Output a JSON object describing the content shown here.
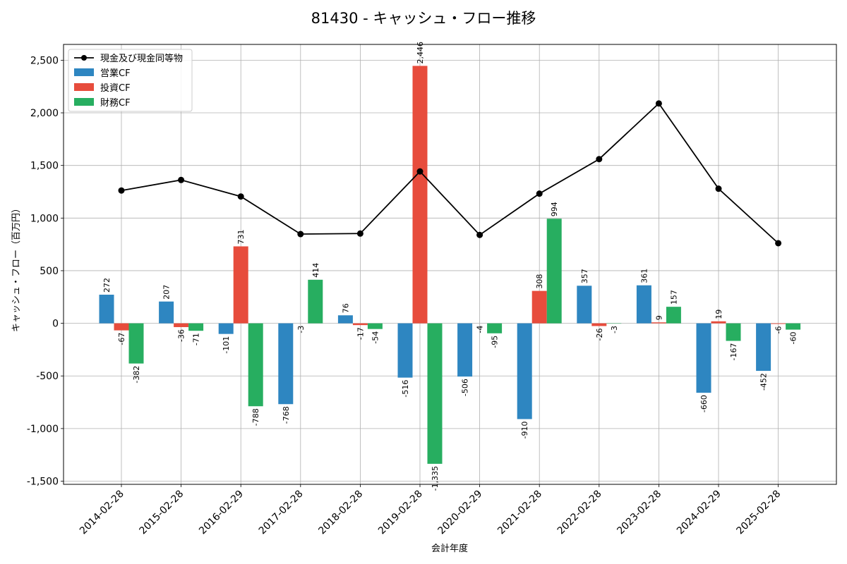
{
  "chart_data": {
    "type": "bar",
    "title": "81430 - キャッシュ・フロー推移",
    "xlabel": "会計年度",
    "ylabel": "キャッシュ・フロー（百万円）",
    "ylim": [
      -1530,
      2650
    ],
    "yticks": [
      -1500,
      -1000,
      -500,
      0,
      500,
      1000,
      1500,
      2000,
      2500
    ],
    "ytick_labels": [
      "-1,500",
      "-1,000",
      "-500",
      "0",
      "500",
      "1,000",
      "1,500",
      "2,000",
      "2,500"
    ],
    "grid": true,
    "legend_position": "top-left",
    "categories": [
      "2014-02-28",
      "2015-02-28",
      "2016-02-29",
      "2017-02-28",
      "2018-02-28",
      "2019-02-28",
      "2020-02-29",
      "2021-02-28",
      "2022-02-28",
      "2023-02-28",
      "2024-02-29",
      "2025-02-28"
    ],
    "series": [
      {
        "name": "営業CF",
        "kind": "bar",
        "color": "#2e86c1",
        "values": [
          272,
          207,
          -101,
          -768,
          76,
          -516,
          -506,
          -910,
          357,
          361,
          -660,
          -452
        ],
        "labels": [
          "272",
          "207",
          "-101",
          "-768",
          "76",
          "-516",
          "-506",
          "-910",
          "357",
          "361",
          "-660",
          "-452"
        ]
      },
      {
        "name": "投資CF",
        "kind": "bar",
        "color": "#e74c3c",
        "values": [
          -67,
          -36,
          731,
          null,
          -17,
          2446,
          null,
          308,
          -26,
          9,
          19,
          -6
        ],
        "labels": [
          "-67",
          "-36",
          "731",
          "",
          "-17",
          "2,446",
          "",
          "308",
          "-26",
          "9",
          "19",
          "-6"
        ]
      },
      {
        "name": "財務CF",
        "kind": "bar",
        "color": "#27ae60",
        "values": [
          -382,
          -71,
          -788,
          414,
          -54,
          -1335,
          -95,
          994,
          -3,
          157,
          -167,
          -60
        ],
        "labels": [
          "-382",
          "-71",
          "-788",
          "414",
          "-54",
          "-1,335",
          "-95",
          "994",
          "-3",
          "157",
          "-167",
          "-60"
        ]
      },
      {
        "name": "現金及び現金同等物",
        "kind": "line",
        "color": "#000000",
        "values": [
          1262,
          1362,
          1205,
          848,
          853,
          1443,
          840,
          1232,
          1560,
          2089,
          1279,
          761
        ]
      }
    ],
    "extra_labels": [
      {
        "category_index": 3,
        "text": "-3"
      },
      {
        "category_index": 6,
        "text": "-4"
      }
    ]
  }
}
